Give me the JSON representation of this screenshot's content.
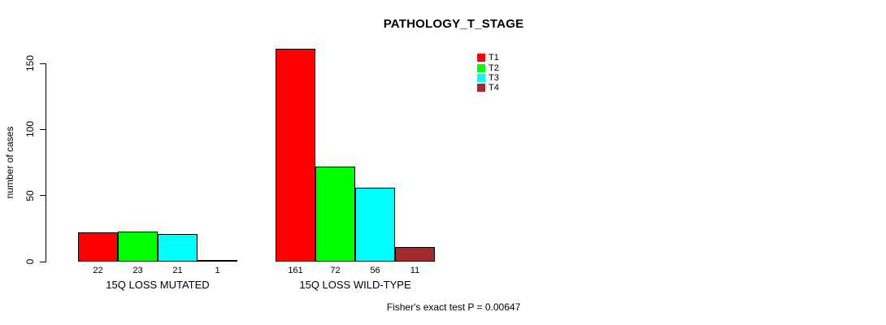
{
  "chart_data": {
    "type": "bar",
    "title": "PATHOLOGY_T_STAGE",
    "ylabel": "number of cases",
    "xlabel": "",
    "ylim": [
      0,
      150
    ],
    "yticks": [
      0,
      50,
      100,
      150
    ],
    "grid": false,
    "legend_position": "top-right",
    "categories": [
      "15Q LOSS MUTATED",
      "15Q LOSS WILD-TYPE"
    ],
    "series": [
      {
        "name": "T1",
        "color": "#FF0000",
        "values": [
          22,
          161
        ]
      },
      {
        "name": "T2",
        "color": "#00FF00",
        "values": [
          23,
          72
        ]
      },
      {
        "name": "T3",
        "color": "#00FFFF",
        "values": [
          21,
          56
        ]
      },
      {
        "name": "T4",
        "color": "#A52A2A",
        "values": [
          1,
          11
        ]
      }
    ],
    "bar_value_labels": {
      "15Q LOSS MUTATED": [
        22,
        23,
        21,
        1
      ],
      "15Q LOSS WILD-TYPE": [
        161,
        72,
        56,
        11
      ]
    },
    "footnote": "Fisher's exact test P = 0.00647",
    "background_color": "#FFFFFF",
    "axis_color": "#000000",
    "bar_border_color": "#000000"
  }
}
